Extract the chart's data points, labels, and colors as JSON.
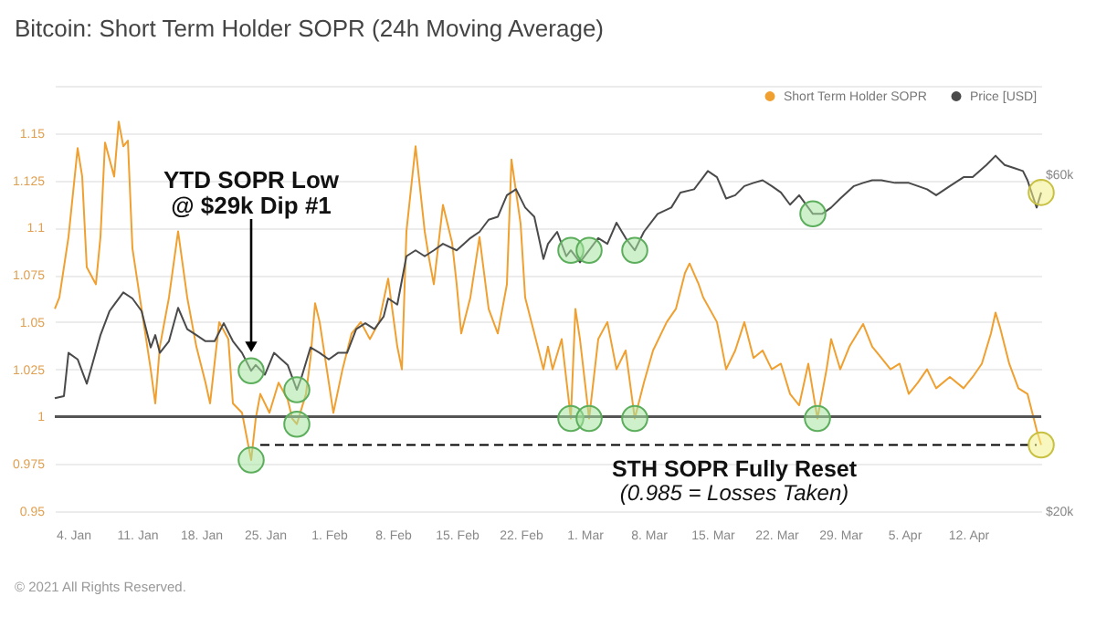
{
  "chart_data": {
    "type": "line",
    "title": "Bitcoin: Short Term Holder SOPR (24h Moving Average)",
    "series": [
      {
        "name": "Short Term Holder SOPR",
        "color": "#f0a030",
        "x": [
          "2021-01-02",
          "2021-01-02T12:00",
          "2021-01-03T12:00",
          "2021-01-04T12:00",
          "2021-01-05",
          "2021-01-05T12:00",
          "2021-01-06T12:00",
          "2021-01-07",
          "2021-01-07T12:00",
          "2021-01-08T12:00",
          "2021-01-09",
          "2021-01-09T12:00",
          "2021-01-10",
          "2021-01-10T12:00",
          "2021-01-11T12:00",
          "2021-01-12T12:00",
          "2021-01-13",
          "2021-01-13T12:00",
          "2021-01-14T12:00",
          "2021-01-15T12:00",
          "2021-01-16T12:00",
          "2021-01-17T12:00",
          "2021-01-18T12:00",
          "2021-01-19",
          "2021-01-20",
          "2021-01-21",
          "2021-01-21T12:00",
          "2021-01-22T12:00",
          "2021-01-23T12:00",
          "2021-01-24",
          "2021-01-24T12:00",
          "2021-01-25T12:00",
          "2021-01-26T12:00",
          "2021-01-27T12:00",
          "2021-01-28",
          "2021-01-28T12:00",
          "2021-01-29T12:00",
          "2021-01-30",
          "2021-01-30T12:00",
          "2021-01-31",
          "2021-02-01",
          "2021-02-01T12:00",
          "2021-02-02T12:00",
          "2021-02-03T12:00",
          "2021-02-04T12:00",
          "2021-02-05T12:00",
          "2021-02-06T12:00",
          "2021-02-07T12:00",
          "2021-02-08T12:00",
          "2021-02-09",
          "2021-02-09T12:00",
          "2021-02-10T12:00",
          "2021-02-11T12:00",
          "2021-02-12",
          "2021-02-12T12:00",
          "2021-02-13T12:00",
          "2021-02-14T12:00",
          "2021-02-15",
          "2021-02-15T12:00",
          "2021-02-16T12:00",
          "2021-02-17T12:00",
          "2021-02-18T12:00",
          "2021-02-19T12:00",
          "2021-02-20T12:00",
          "2021-02-21",
          "2021-02-22",
          "2021-02-22T12:00",
          "2021-02-23T12:00",
          "2021-02-24T12:00",
          "2021-02-25",
          "2021-02-25T12:00",
          "2021-02-26T12:00",
          "2021-02-27T12:00",
          "2021-02-28",
          "2021-02-28T12:00",
          "2021-03-01T12:00",
          "2021-03-02T12:00",
          "2021-03-03T12:00",
          "2021-03-04T12:00",
          "2021-03-05T12:00",
          "2021-03-06T12:00",
          "2021-03-07T12:00",
          "2021-03-08T12:00",
          "2021-03-10",
          "2021-03-11",
          "2021-03-12",
          "2021-03-12T12:00",
          "2021-03-13T12:00",
          "2021-03-14",
          "2021-03-15T12:00",
          "2021-03-16T12:00",
          "2021-03-17T12:00",
          "2021-03-18T12:00",
          "2021-03-19T12:00",
          "2021-03-20T12:00",
          "2021-03-21T12:00",
          "2021-03-22T12:00",
          "2021-03-23T12:00",
          "2021-03-24T12:00",
          "2021-03-25T12:00",
          "2021-03-26T12:00",
          "2021-03-27T12:00",
          "2021-03-28",
          "2021-03-29",
          "2021-03-30",
          "2021-03-31T12:00",
          "2021-04-01T12:00",
          "2021-04-02T12:00",
          "2021-04-03T12:00",
          "2021-04-04T12:00",
          "2021-04-05T12:00",
          "2021-04-06T12:00",
          "2021-04-07T12:00",
          "2021-04-08T12:00",
          "2021-04-10",
          "2021-04-11T12:00",
          "2021-04-12T12:00",
          "2021-04-13T12:00",
          "2021-04-14T12:00",
          "2021-04-15",
          "2021-04-15T12:00",
          "2021-04-16T12:00",
          "2021-04-17T12:00",
          "2021-04-18T12:00",
          "2021-04-19T12:00",
          "2021-04-20"
        ],
        "values": [
          1.057,
          1.063,
          1.095,
          1.142,
          1.127,
          1.079,
          1.07,
          1.095,
          1.145,
          1.127,
          1.156,
          1.143,
          1.146,
          1.089,
          1.057,
          1.025,
          1.007,
          1.037,
          1.063,
          1.098,
          1.063,
          1.037,
          1.018,
          1.007,
          1.05,
          1.041,
          1.007,
          1.002,
          0.977,
          0.999,
          1.012,
          1.002,
          1.018,
          1.009,
          0.999,
          0.996,
          1.012,
          1.031,
          1.06,
          1.05,
          1.018,
          1.002,
          1.025,
          1.044,
          1.05,
          1.041,
          1.05,
          1.073,
          1.037,
          1.025,
          1.098,
          1.143,
          1.098,
          1.083,
          1.07,
          1.112,
          1.092,
          1.07,
          1.044,
          1.063,
          1.095,
          1.057,
          1.044,
          1.07,
          1.136,
          1.102,
          1.063,
          1.044,
          1.025,
          1.037,
          1.025,
          1.041,
          0.999,
          1.057,
          1.041,
          0.999,
          1.041,
          1.05,
          1.025,
          1.035,
          0.999,
          1.018,
          1.035,
          1.05,
          1.057,
          1.076,
          1.081,
          1.07,
          1.063,
          1.05,
          1.025,
          1.035,
          1.05,
          1.031,
          1.035,
          1.025,
          1.028,
          1.012,
          1.006,
          1.028,
          0.999,
          1.025,
          1.041,
          1.025,
          1.037,
          1.049,
          1.037,
          1.031,
          1.025,
          1.028,
          1.012,
          1.018,
          1.025,
          1.015,
          1.021,
          1.015,
          1.021,
          1.028,
          1.044,
          1.055,
          1.047,
          1.028,
          1.015,
          1.012,
          0.993,
          0.985
        ]
      },
      {
        "name": "Price [USD]",
        "color": "#4a4a4a",
        "axis": "y2",
        "x": [
          "2021-01-02",
          "2021-01-03",
          "2021-01-03T12:00",
          "2021-01-04T12:00",
          "2021-01-05T12:00",
          "2021-01-06",
          "2021-01-07",
          "2021-01-08",
          "2021-01-08T12:00",
          "2021-01-09T12:00",
          "2021-01-10T12:00",
          "2021-01-11T12:00",
          "2021-01-12T12:00",
          "2021-01-13",
          "2021-01-13T12:00",
          "2021-01-14T12:00",
          "2021-01-15T12:00",
          "2021-01-16T12:00",
          "2021-01-17T12:00",
          "2021-01-18T12:00",
          "2021-01-19T12:00",
          "2021-01-20T12:00",
          "2021-01-21T12:00",
          "2021-01-22T12:00",
          "2021-01-23T12:00",
          "2021-01-24",
          "2021-01-25",
          "2021-01-26",
          "2021-01-27T12:00",
          "2021-01-28T12:00",
          "2021-01-29",
          "2021-01-30",
          "2021-01-31",
          "2021-02-01",
          "2021-02-02",
          "2021-02-03",
          "2021-02-04",
          "2021-02-05",
          "2021-02-06",
          "2021-02-07",
          "2021-02-07T12:00",
          "2021-02-08T12:00",
          "2021-02-09T12:00",
          "2021-02-10T12:00",
          "2021-02-11T12:00",
          "2021-02-12T12:00",
          "2021-02-13T12:00",
          "2021-02-15",
          "2021-02-16T12:00",
          "2021-02-17T12:00",
          "2021-02-18T12:00",
          "2021-02-19T12:00",
          "2021-02-20T12:00",
          "2021-02-21T12:00",
          "2021-02-22T12:00",
          "2021-02-23T12:00",
          "2021-02-24T12:00",
          "2021-02-25",
          "2021-02-26",
          "2021-02-27",
          "2021-02-27T12:00",
          "2021-02-28T12:00",
          "2021-03-01T12:00",
          "2021-03-02T12:00",
          "2021-03-03T12:00",
          "2021-03-04T12:00",
          "2021-03-05T12:00",
          "2021-03-06T12:00",
          "2021-03-07T12:00",
          "2021-03-09",
          "2021-03-10T12:00",
          "2021-03-11T12:00",
          "2021-03-13",
          "2021-03-14",
          "2021-03-14T12:00",
          "2021-03-15T12:00",
          "2021-03-16T12:00",
          "2021-03-17T12:00",
          "2021-03-18T12:00",
          "2021-03-19T12:00",
          "2021-03-20T12:00",
          "2021-03-21T12:00",
          "2021-03-22T12:00",
          "2021-03-23T12:00",
          "2021-03-24T12:00",
          "2021-03-26",
          "2021-03-27",
          "2021-03-28",
          "2021-03-29",
          "2021-03-30T12:00",
          "2021-03-31T12:00",
          "2021-04-01T12:00",
          "2021-04-02T12:00",
          "2021-04-04",
          "2021-04-05T12:00",
          "2021-04-06T12:00",
          "2021-04-07T12:00",
          "2021-04-08T12:00",
          "2021-04-10",
          "2021-04-11T12:00",
          "2021-04-12T12:00",
          "2021-04-14",
          "2021-04-15",
          "2021-04-16",
          "2021-04-17",
          "2021-04-18",
          "2021-04-18T12:00",
          "2021-04-19T12:00",
          "2021-04-20"
        ],
        "values": [
          28900,
          29100,
          33500,
          32800,
          30300,
          31900,
          35500,
          38400,
          39200,
          40800,
          40000,
          38400,
          34100,
          35500,
          33500,
          34800,
          38800,
          36200,
          35500,
          34800,
          34800,
          36900,
          34800,
          33500,
          31600,
          32200,
          31200,
          33500,
          32200,
          29700,
          30900,
          34100,
          33500,
          32800,
          33500,
          33500,
          36200,
          36900,
          36200,
          37700,
          40000,
          39200,
          45900,
          46800,
          45900,
          46800,
          47800,
          46800,
          48700,
          49700,
          51700,
          52200,
          56000,
          57100,
          53800,
          52200,
          45500,
          47800,
          49700,
          45900,
          46800,
          45000,
          46800,
          48700,
          47800,
          51200,
          48700,
          46800,
          49700,
          52700,
          53800,
          56500,
          57100,
          59400,
          60600,
          59400,
          55400,
          56000,
          57700,
          58300,
          58800,
          57700,
          56500,
          54300,
          56000,
          52700,
          52700,
          53800,
          55400,
          57700,
          58300,
          58800,
          58800,
          58300,
          58300,
          57700,
          57100,
          56000,
          57700,
          59400,
          59400,
          61800,
          63700,
          61800,
          61200,
          60600,
          58800,
          53800,
          56500
        ]
      },
      {
        "type": "line",
        "color": "#000000",
        "line_style": "dashed",
        "x": [
          "2021-01-24T12:00",
          "2021-04-19T12:00"
        ],
        "values": [
          0.985,
          0.985
        ]
      }
    ],
    "xlim": [
      "2021-01-02",
      "2021-04-20"
    ],
    "xticks": [
      {
        "value": "2021-01-04",
        "label": "4. Jan"
      },
      {
        "value": "2021-01-11",
        "label": "11. Jan"
      },
      {
        "value": "2021-01-18",
        "label": "18. Jan"
      },
      {
        "value": "2021-01-25",
        "label": "25. Jan"
      },
      {
        "value": "2021-02-01",
        "label": "1. Feb"
      },
      {
        "value": "2021-02-08",
        "label": "8. Feb"
      },
      {
        "value": "2021-02-15",
        "label": "15. Feb"
      },
      {
        "value": "2021-02-22",
        "label": "22. Feb"
      },
      {
        "value": "2021-03-01",
        "label": "1. Mar"
      },
      {
        "value": "2021-03-08",
        "label": "8. Mar"
      },
      {
        "value": "2021-03-15",
        "label": "15. Mar"
      },
      {
        "value": "2021-03-22",
        "label": "22. Mar"
      },
      {
        "value": "2021-03-29",
        "label": "29. Mar"
      },
      {
        "value": "2021-04-05",
        "label": "5. Apr"
      },
      {
        "value": "2021-04-12",
        "label": "12. Apr"
      }
    ],
    "ylim": [
      0.95,
      1.175
    ],
    "yticks": [
      0.95,
      0.975,
      1,
      1.025,
      1.05,
      1.075,
      1.1,
      1.125,
      1.15,
      {
        "value": 1.175,
        "label": null
      }
    ],
    "y2lim": [
      20000,
      80000
    ],
    "y2ticks": [
      {
        "value": 20000,
        "label": "$20k"
      },
      {
        "value": 60000,
        "label": "$60k"
      }
    ],
    "log": "y2",
    "grid": "y",
    "legend": "top right",
    "ref_lines": [
      {
        "axis": "y",
        "value": 1,
        "color": "#555555"
      }
    ],
    "annotations": [
      "YTD SOPR Low\n@ $29k Dip #1",
      "STH SOPR Fully Reset",
      "(0.985 = Losses Taken)",
      "© 2021 All Rights Reserved."
    ]
  }
}
